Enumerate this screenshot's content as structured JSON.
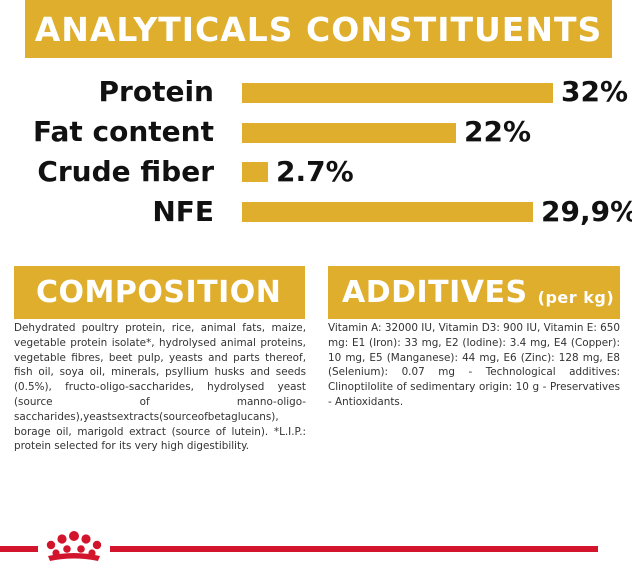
{
  "analytics": {
    "title": "ANALYTICALS CONSTITUENTS",
    "rows": [
      {
        "label": "Protein",
        "value_label": "32%",
        "value": 32
      },
      {
        "label": "Fat content",
        "value_label": "22%",
        "value": 22
      },
      {
        "label": "Crude fiber",
        "value_label": "2.7%",
        "value": 2.7
      },
      {
        "label": "NFE",
        "value_label": "29,9%",
        "value": 29.9
      }
    ]
  },
  "composition": {
    "title": "COMPOSITION",
    "text": "Dehydrated poultry protein, rice, animal fats, maize, vegetable protein isolate*, hydrolysed animal proteins, vegetable fibres, beet pulp, yeasts and parts thereof, fish oil, soya oil, minerals, psyllium husks and seeds (0.5%), fructo-oligo-saccharides, hydrolysed yeast (source of manno-oligo-saccharides),yeastsextracts(sourceofbetaglucans), borage oil, marigold extract (source of lutein). *L.I.P.: protein selected for its very high digestibility."
  },
  "additives": {
    "title": "ADDITIVES",
    "unit": "(per kg)",
    "text": "Vitamin A: 32000 IU, Vitamin D3: 900 IU, Vitamin E: 650 mg: E1 (Iron): 33 mg, E2 (Iodine): 3.4 mg, E4 (Copper): 10 mg, E5 (Manganese): 44 mg, E6 (Zinc): 128 mg, E8 (Selenium): 0.07 mg - Technological additives: Clinoptilolite of sedimentary origin: 10 g - Preservatives - Antioxidants."
  },
  "colors": {
    "gold": "#dfae2d",
    "brand_red": "#d2152c"
  },
  "icons": {
    "brand_mark": "crown-icon"
  }
}
